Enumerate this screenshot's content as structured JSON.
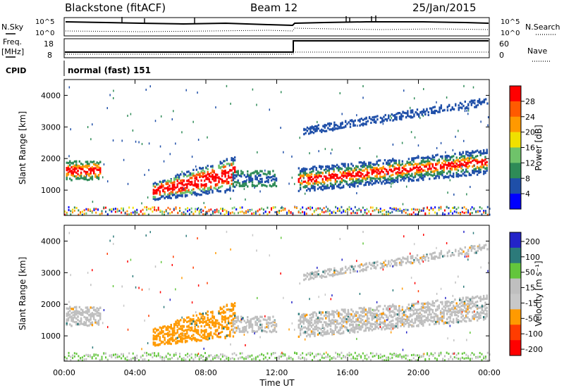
{
  "header": {
    "station": "Blackstone (fitACF)",
    "beam": "Beam 12",
    "date": "25/Jan/2015"
  },
  "noise_panel": {
    "left_label": "N.Sky",
    "right_label": "N.Search",
    "left_ticks": [
      "10^5",
      "10^0"
    ],
    "right_ticks": [
      "10^5",
      "10^0"
    ]
  },
  "freq_panel": {
    "left_label_1": "Freq.",
    "left_label_2": "[MHz]",
    "right_label": "Nave",
    "left_ticks": [
      "18",
      "8"
    ],
    "right_ticks": [
      "60",
      "0"
    ]
  },
  "cpid_panel": {
    "label": "CPID",
    "value": "normal (fast) 151"
  },
  "colors": {
    "power": [
      "#0000ff",
      "#1f4fa8",
      "#2e8b57",
      "#6fc36a",
      "#f0e000",
      "#ff9900",
      "#ff5a00",
      "#ff0000"
    ],
    "velocity": [
      "#2323c8",
      "#2c7a7a",
      "#63c63c",
      "#bfbfbf",
      "#c8c8c8",
      "#ff9a00",
      "#ff3c00",
      "#ff0000"
    ]
  },
  "chart_data": [
    {
      "type": "heatmap",
      "name": "power",
      "ylabel": "Slant Range [km]",
      "xlabel": "Time UT",
      "x_ticks": [
        "00:00",
        "04:00",
        "08:00",
        "12:00",
        "16:00",
        "20:00",
        "00:00"
      ],
      "y_ticks": [
        1000,
        2000,
        3000,
        4000
      ],
      "ylim": [
        200,
        4500
      ],
      "xlim": [
        0,
        24
      ],
      "colorbar": {
        "label": "Power [dB]",
        "ticks": [
          "4",
          "8",
          "12",
          "16",
          "20",
          "24",
          "28"
        ]
      }
    },
    {
      "type": "heatmap",
      "name": "velocity",
      "ylabel": "Slant Range [km]",
      "xlabel": "Time UT",
      "x_ticks": [
        "00:00",
        "04:00",
        "08:00",
        "12:00",
        "16:00",
        "20:00",
        "00:00"
      ],
      "y_ticks": [
        1000,
        2000,
        3000,
        4000
      ],
      "ylim": [
        200,
        4500
      ],
      "xlim": [
        0,
        24
      ],
      "colorbar": {
        "label": "Velocity [m s⁻¹]",
        "ticks": [
          "200",
          "100",
          "50",
          "15",
          "-15",
          "-50",
          "-100",
          "-200"
        ]
      }
    }
  ]
}
